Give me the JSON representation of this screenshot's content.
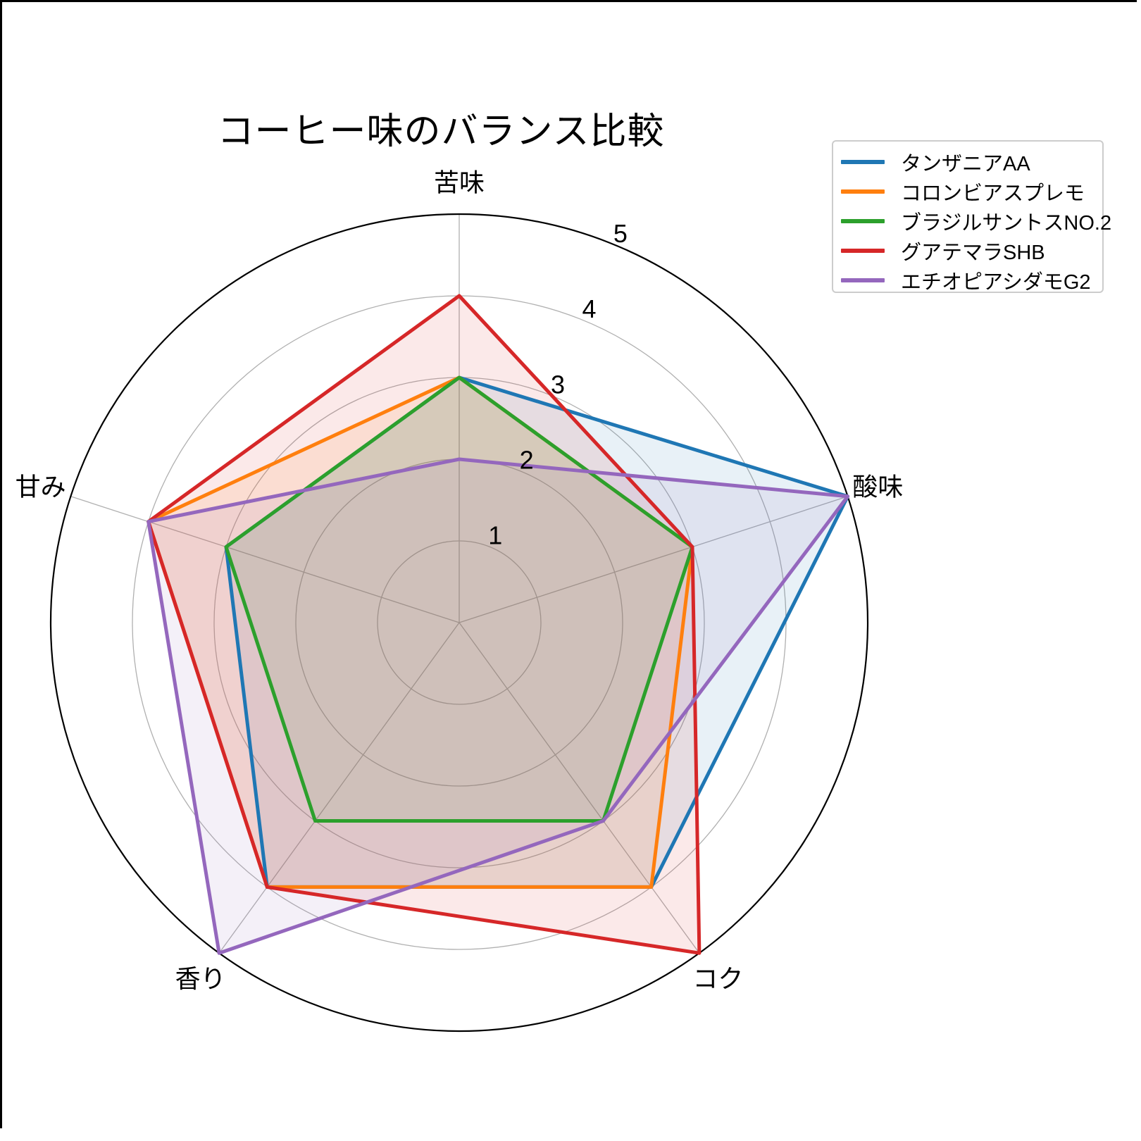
{
  "chart": {
    "title": "コーヒー味のバランス比較",
    "legend": {
      "entries": [
        "タンザニアAA",
        "コロンビアスプレモ",
        "ブラジルサントスNO.2",
        "グアテマラSHB",
        "エチオピアシダモG2"
      ]
    },
    "colors": {
      "grid": "#b0b0b0",
      "outer_ring": "#000000",
      "text": "#000000",
      "legend_border": "#cccccc"
    }
  },
  "chart_data": {
    "type": "radar",
    "title": "コーヒー味のバランス比較",
    "categories": [
      "苦味",
      "酸味",
      "コク",
      "香り",
      "甘み"
    ],
    "series": [
      {
        "name": "タンザニアAA",
        "color": "#1f77b4",
        "values": [
          3,
          5,
          4,
          4,
          3
        ]
      },
      {
        "name": "コロンビアスプレモ",
        "color": "#ff7f0e",
        "values": [
          3,
          3,
          4,
          4,
          4
        ]
      },
      {
        "name": "ブラジルサントスNO.2",
        "color": "#2ca02c",
        "values": [
          3,
          3,
          3,
          3,
          3
        ]
      },
      {
        "name": "グアテマラSHB",
        "color": "#d62728",
        "values": [
          4,
          3,
          5,
          4,
          4
        ]
      },
      {
        "name": "エチオピアシダモG2",
        "color": "#9467bd",
        "values": [
          2,
          5,
          3,
          5,
          4
        ]
      }
    ],
    "radial_ticks": [
      1,
      2,
      3,
      4,
      5
    ],
    "r_range": [
      0,
      5
    ],
    "start_axis_angle_deg": 90,
    "direction": "clockwise",
    "fill_alpha": 0.1,
    "grid": true,
    "legend_position": "upper right"
  }
}
